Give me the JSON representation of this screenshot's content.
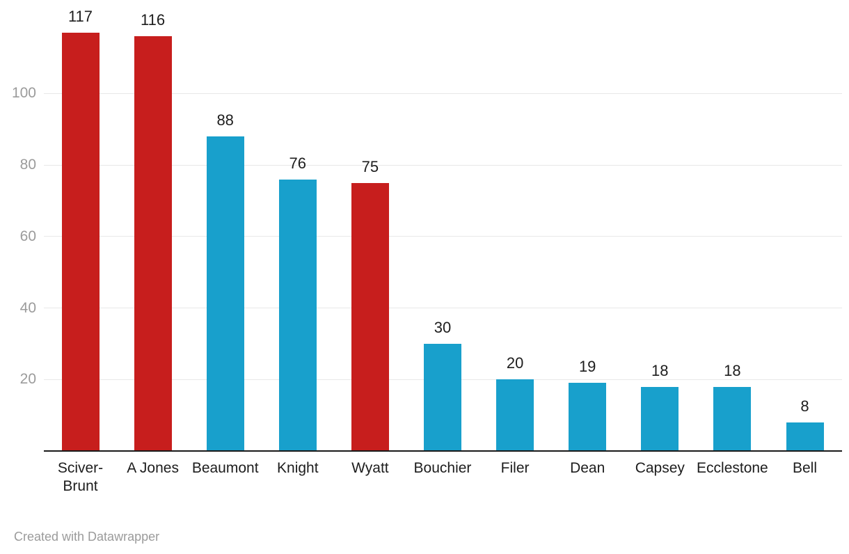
{
  "chart_data": {
    "type": "bar",
    "categories": [
      "Sciver-Brunt",
      "A Jones",
      "Beaumont",
      "Knight",
      "Wyatt",
      "Bouchier",
      "Filer",
      "Dean",
      "Capsey",
      "Ecclestone",
      "Bell"
    ],
    "category_label_lines": [
      [
        "Sciver-",
        "Brunt"
      ],
      [
        "A Jones"
      ],
      [
        "Beaumont"
      ],
      [
        "Knight"
      ],
      [
        "Wyatt"
      ],
      [
        "Bouchier"
      ],
      [
        "Filer"
      ],
      [
        "Dean"
      ],
      [
        "Capsey"
      ],
      [
        "Ecclestone"
      ],
      [
        "Bell"
      ]
    ],
    "values": [
      117,
      116,
      88,
      76,
      75,
      30,
      20,
      19,
      18,
      18,
      8
    ],
    "value_labels": [
      "117",
      "116",
      "88",
      "76",
      "75",
      "30",
      "20",
      "19",
      "18",
      "18",
      "8"
    ],
    "bar_colors": [
      "#c71e1d",
      "#c71e1d",
      "#18a0cc",
      "#18a0cc",
      "#c71e1d",
      "#18a0cc",
      "#18a0cc",
      "#18a0cc",
      "#18a0cc",
      "#18a0cc",
      "#18a0cc"
    ],
    "title": "",
    "xlabel": "",
    "ylabel": "",
    "y_ticks": [
      20,
      40,
      60,
      80,
      100
    ],
    "y_tick_labels": [
      "20",
      "40",
      "60",
      "80",
      "100"
    ],
    "ylim": [
      0,
      126
    ],
    "grid": "horizontal",
    "legend": "none",
    "palette": {
      "highlight_red": "#c71e1d",
      "default_blue": "#18a0cc",
      "gridline": "#e8e8e8",
      "axis_line": "#191919",
      "value_label": "#1d1d1d",
      "tick_label": "#9b9b9b"
    }
  },
  "footer": {
    "credit": "Created with Datawrapper"
  }
}
